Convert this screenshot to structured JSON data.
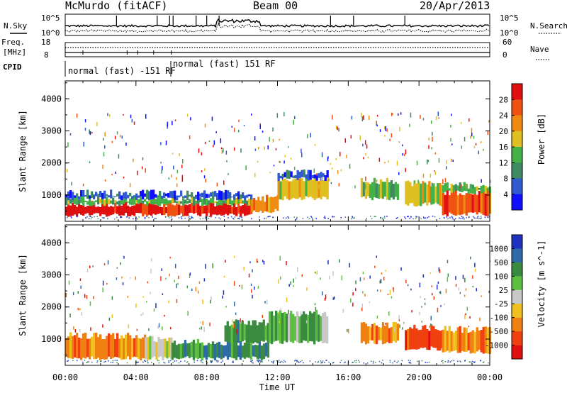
{
  "header": {
    "station": "McMurdo (fitACF)",
    "beam": "Beam 00",
    "date": "20/Apr/2013"
  },
  "status_panels": {
    "nsky_label": "N.Sky",
    "nsearch_label": "N.Search",
    "nsky_ticks": [
      "10^5",
      "10^0"
    ],
    "nsearch_ticks": [
      "10^5",
      "10^0"
    ],
    "freq_label_1": "Freq.",
    "freq_label_2": "[MHz]",
    "freq_ticks": [
      "18",
      "8"
    ],
    "nave_label": "Nave",
    "nave_ticks": [
      "60",
      "0"
    ],
    "cpid_label": "CPID",
    "cpid_segments": [
      {
        "label": "normal (fast) -151 RF",
        "start_h": 0,
        "end_h": 6
      },
      {
        "label": "normal (fast) 151 RF",
        "start_h": 6,
        "end_h": 24
      }
    ]
  },
  "xaxis": {
    "label": "Time UT",
    "ticks": [
      "00:00",
      "04:00",
      "08:00",
      "12:00",
      "16:00",
      "20:00",
      "00:00"
    ],
    "range_h": [
      0,
      24
    ]
  },
  "chart_data": [
    {
      "type": "heatmap",
      "name": "Power",
      "ylabel": "Slant Range [km]",
      "yticks": [
        "1000",
        "2000",
        "3000",
        "4000"
      ],
      "ylim": [
        180,
        4560
      ],
      "colorbar": {
        "label": "Power [dB]",
        "ticks": [
          "4",
          "8",
          "12",
          "16",
          "20",
          "24",
          "28"
        ],
        "range": [
          0,
          30
        ],
        "colors": [
          "#1010ff",
          "#2f5ad0",
          "#3f8a60",
          "#44b048",
          "#e0c020",
          "#f08a10",
          "#f05010",
          "#e01010"
        ]
      },
      "bands": [
        {
          "t0": 0.0,
          "t1": 10.5,
          "r0": 380,
          "r1": 720,
          "level": 7
        },
        {
          "t0": 0.0,
          "t1": 10.5,
          "r0": 720,
          "r1": 900,
          "level": 3
        },
        {
          "t0": 0.0,
          "t1": 10.5,
          "r0": 900,
          "r1": 1060,
          "level": 1
        },
        {
          "t0": 10.5,
          "t1": 12.0,
          "r0": 500,
          "r1": 900,
          "level": 5
        },
        {
          "t0": 12.0,
          "t1": 14.8,
          "r0": 900,
          "r1": 1500,
          "level": 4
        },
        {
          "t0": 12.0,
          "t1": 14.8,
          "r0": 1500,
          "r1": 1700,
          "level": 1
        },
        {
          "t0": 16.7,
          "t1": 18.8,
          "r0": 900,
          "r1": 1450,
          "level": 3
        },
        {
          "t0": 19.2,
          "t1": 21.3,
          "r0": 700,
          "r1": 1350,
          "level": 4
        },
        {
          "t0": 21.3,
          "t1": 24.0,
          "r0": 400,
          "r1": 1100,
          "level": 6
        },
        {
          "t0": 21.3,
          "t1": 24.0,
          "r0": 1100,
          "r1": 1300,
          "level": 3
        }
      ]
    },
    {
      "type": "heatmap",
      "name": "Velocity",
      "ylabel": "Slant Range [km]",
      "yticks": [
        "1000",
        "2000",
        "3000",
        "4000"
      ],
      "ylim": [
        180,
        4560
      ],
      "colorbar": {
        "label": "Velocity [m s^-1]",
        "ticks": [
          "1000",
          "500",
          "100",
          "25",
          "-25",
          "-100",
          "-500",
          "-1000"
        ],
        "range": [
          -1200,
          1200
        ],
        "colors": [
          "#2030c0",
          "#2e6aa8",
          "#3a8a40",
          "#5ec040",
          "#c8c8c8",
          "#f0c020",
          "#f08010",
          "#f04010",
          "#e01010"
        ]
      },
      "bands": [
        {
          "t0": 0.0,
          "t1": 4.5,
          "r0": 400,
          "r1": 1100,
          "level": 6
        },
        {
          "t0": 4.5,
          "t1": 6.0,
          "r0": 400,
          "r1": 1000,
          "level": 4
        },
        {
          "t0": 6.0,
          "t1": 11.5,
          "r0": 400,
          "r1": 900,
          "level": 2
        },
        {
          "t0": 9.0,
          "t1": 11.5,
          "r0": 900,
          "r1": 1500,
          "level": 2
        },
        {
          "t0": 11.5,
          "t1": 14.8,
          "r0": 900,
          "r1": 1800,
          "level": 3
        },
        {
          "t0": 16.7,
          "t1": 18.8,
          "r0": 900,
          "r1": 1450,
          "level": 6
        },
        {
          "t0": 19.2,
          "t1": 21.3,
          "r0": 700,
          "r1": 1350,
          "level": 7
        },
        {
          "t0": 21.3,
          "t1": 24.0,
          "r0": 600,
          "r1": 1300,
          "level": 6
        }
      ]
    }
  ]
}
